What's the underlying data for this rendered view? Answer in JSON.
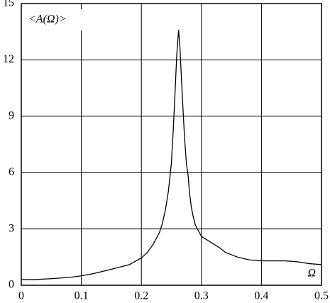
{
  "chart_data": {
    "type": "line",
    "y_label": "<A(Ω)>",
    "x_label": "Ω",
    "xlim": [
      0,
      0.5
    ],
    "xticks": [
      0,
      0.1,
      0.2,
      0.3,
      0.4,
      0.5
    ],
    "ylim": [
      0,
      15
    ],
    "yticks": [
      0,
      3,
      6,
      9,
      12,
      15
    ],
    "grid": true,
    "series": [
      {
        "color": "#000000",
        "x": [
          0,
          0.02,
          0.05,
          0.08,
          0.1,
          0.12,
          0.15,
          0.18,
          0.2,
          0.21,
          0.22,
          0.23,
          0.235,
          0.24,
          0.245,
          0.25,
          0.253,
          0.256,
          0.259,
          0.262,
          0.264,
          0.266,
          0.268,
          0.27,
          0.272,
          0.275,
          0.278,
          0.28,
          0.283,
          0.286,
          0.29,
          0.295,
          0.3,
          0.31,
          0.32,
          0.33,
          0.34,
          0.36,
          0.38,
          0.4,
          0.42,
          0.44,
          0.46,
          0.48,
          0.5
        ],
        "values": [
          0.3,
          0.3,
          0.35,
          0.42,
          0.5,
          0.62,
          0.85,
          1.1,
          1.45,
          1.75,
          2.2,
          2.8,
          3.3,
          4.0,
          5.0,
          6.5,
          8.2,
          10.2,
          12.3,
          13.6,
          12.8,
          11.5,
          10.2,
          9.0,
          7.8,
          6.5,
          5.8,
          5.0,
          4.2,
          3.7,
          3.2,
          2.9,
          2.6,
          2.4,
          2.2,
          2.0,
          1.75,
          1.5,
          1.35,
          1.3,
          1.3,
          1.3,
          1.25,
          1.15,
          1.1
        ]
      }
    ]
  }
}
